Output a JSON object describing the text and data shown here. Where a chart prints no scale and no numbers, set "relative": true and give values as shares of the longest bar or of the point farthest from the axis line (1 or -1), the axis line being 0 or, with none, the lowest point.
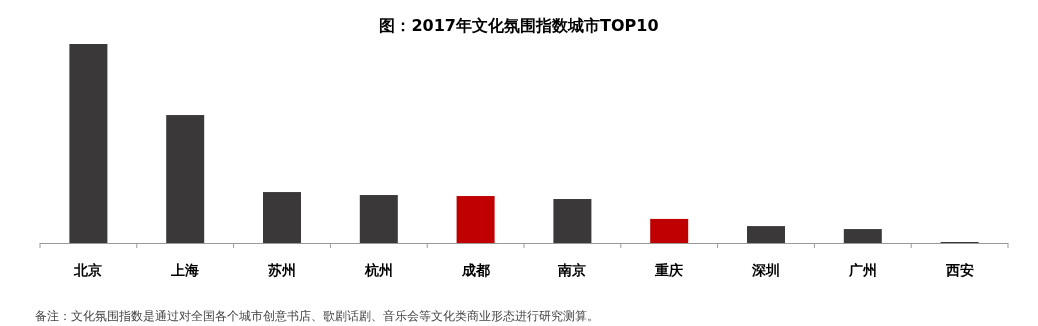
{
  "chart_data": {
    "type": "bar",
    "title": "图：2017年文化氛围指数城市TOP10",
    "relative": true,
    "categories": [
      "北京",
      "上海",
      "苏州",
      "杭州",
      "成都",
      "南京",
      "重庆",
      "深圳",
      "广州",
      "西安"
    ],
    "values": [
      1,
      0.643,
      0.256,
      0.241,
      0.236,
      0.221,
      0.121,
      0.085,
      0.07,
      0.005
    ],
    "colors": [
      "#3a3839",
      "#3a3839",
      "#3a3839",
      "#3a3839",
      "#c00000",
      "#3a3839",
      "#c00000",
      "#3a3839",
      "#3a3839",
      "#3a3839"
    ],
    "annotations": [
      "备注：文化氛围指数是通过对全国各个城市创意书店、歌剧话剧、音乐会等文化类商业形态进行研究测算。"
    ]
  }
}
